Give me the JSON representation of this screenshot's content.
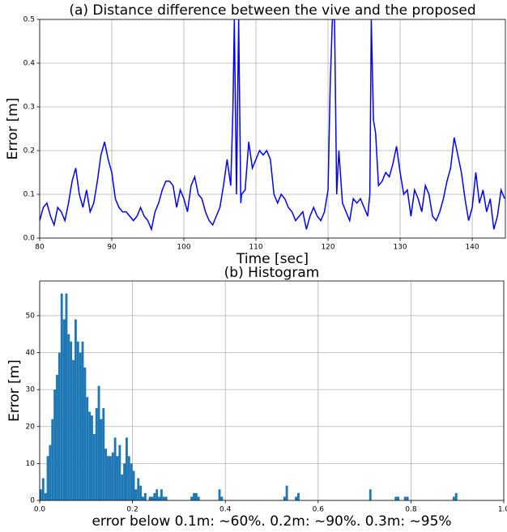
{
  "chart_data": [
    {
      "type": "line",
      "title": "(a) Distance difference between the vive and the proposed",
      "x_label": "Time [sec]",
      "y_label": "Error [m]",
      "x": [
        80,
        80.5,
        81,
        81.5,
        82,
        82.5,
        83,
        83.5,
        84,
        84.5,
        85,
        85.5,
        86,
        86.5,
        87,
        87.5,
        88,
        88.5,
        89,
        89.5,
        90,
        90.5,
        91,
        91.5,
        92,
        92.5,
        93,
        93.5,
        94,
        94.5,
        95,
        95.5,
        96,
        96.5,
        97,
        97.5,
        98,
        98.5,
        99,
        99.5,
        100,
        100.5,
        101,
        101.5,
        102,
        102.5,
        103,
        103.5,
        104,
        104.5,
        105,
        105.5,
        106,
        106.5,
        106.8,
        107,
        107.3,
        107.6,
        107.9,
        108,
        108.5,
        109,
        109.5,
        110,
        110.5,
        111,
        111.5,
        112,
        112.5,
        113,
        113.5,
        114,
        114.5,
        115,
        115.5,
        116,
        116.5,
        117,
        117.5,
        118,
        118.5,
        119,
        119.5,
        120,
        120.3,
        120.6,
        120.9,
        121.2,
        121.5,
        122,
        122.5,
        123,
        123.5,
        124,
        124.5,
        125,
        125.5,
        125.8,
        126,
        126.3,
        126.6,
        127,
        127.5,
        128,
        128.5,
        129,
        129.5,
        130,
        130.5,
        131,
        131.5,
        132,
        132.5,
        133,
        133.5,
        134,
        134.5,
        135,
        135.5,
        136,
        136.5,
        137,
        137.5,
        138,
        138.5,
        139,
        139.5,
        140,
        140.5,
        141,
        141.5,
        142,
        142.5,
        143,
        143.5,
        144,
        144.5
      ],
      "values": [
        0.04,
        0.07,
        0.08,
        0.05,
        0.03,
        0.07,
        0.06,
        0.04,
        0.08,
        0.13,
        0.16,
        0.1,
        0.07,
        0.11,
        0.06,
        0.08,
        0.13,
        0.19,
        0.22,
        0.18,
        0.15,
        0.09,
        0.07,
        0.06,
        0.06,
        0.05,
        0.04,
        0.05,
        0.07,
        0.05,
        0.04,
        0.02,
        0.06,
        0.08,
        0.11,
        0.13,
        0.13,
        0.12,
        0.07,
        0.11,
        0.09,
        0.06,
        0.12,
        0.14,
        0.1,
        0.09,
        0.06,
        0.04,
        0.03,
        0.05,
        0.07,
        0.12,
        0.18,
        0.12,
        0.29,
        0.5,
        0.1,
        0.5,
        0.08,
        0.1,
        0.11,
        0.22,
        0.16,
        0.18,
        0.2,
        0.19,
        0.2,
        0.18,
        0.1,
        0.08,
        0.1,
        0.09,
        0.07,
        0.06,
        0.04,
        0.05,
        0.06,
        0.02,
        0.05,
        0.07,
        0.05,
        0.04,
        0.06,
        0.11,
        0.35,
        0.5,
        0.5,
        0.1,
        0.2,
        0.08,
        0.06,
        0.04,
        0.09,
        0.08,
        0.09,
        0.07,
        0.05,
        0.1,
        0.5,
        0.27,
        0.24,
        0.12,
        0.13,
        0.15,
        0.14,
        0.17,
        0.21,
        0.15,
        0.1,
        0.11,
        0.05,
        0.11,
        0.09,
        0.06,
        0.12,
        0.1,
        0.05,
        0.04,
        0.06,
        0.09,
        0.13,
        0.16,
        0.23,
        0.19,
        0.15,
        0.09,
        0.04,
        0.07,
        0.15,
        0.08,
        0.11,
        0.06,
        0.09,
        0.02,
        0.05,
        0.11,
        0.09
      ],
      "color": "#0000ff",
      "xlim": [
        80,
        144.6
      ],
      "ylim": [
        0,
        0.5
      ],
      "xticks": [
        80,
        90,
        100,
        110,
        120,
        130,
        140
      ],
      "yticks": [
        {
          "value": 0,
          "label": "0.0"
        },
        0.1,
        0.2,
        0.3,
        0.4,
        0.5
      ],
      "grid": true
    },
    {
      "type": "histogram",
      "title": "(b) Histogram",
      "x_label": "error below 0.1m: ~60%. 0.2m: ~90%. 0.3m: ~95%",
      "y_label": "Error [m]",
      "bins": [
        0,
        0.005,
        0.01,
        0.015,
        0.02,
        0.025,
        0.03,
        0.035,
        0.04,
        0.045,
        0.05,
        0.055,
        0.06,
        0.065,
        0.07,
        0.075,
        0.08,
        0.085,
        0.09,
        0.095,
        0.1,
        0.105,
        0.11,
        0.115,
        0.12,
        0.125,
        0.13,
        0.135,
        0.14,
        0.145,
        0.15,
        0.155,
        0.16,
        0.165,
        0.17,
        0.175,
        0.18,
        0.185,
        0.19,
        0.195,
        0.2,
        0.205,
        0.21,
        0.215,
        0.22,
        0.225,
        0.23,
        0.235,
        0.24,
        0.245,
        0.25,
        0.255,
        0.26,
        0.265,
        0.27,
        0.275,
        0.28,
        0.285,
        0.29,
        0.295,
        0.3,
        0.305,
        0.31,
        0.315,
        0.32,
        0.325,
        0.33,
        0.335,
        0.34,
        0.345,
        0.35,
        0.355,
        0.36,
        0.365,
        0.37,
        0.375,
        0.38,
        0.385,
        0.39,
        0.395,
        0.4,
        0.405,
        0.41,
        0.415,
        0.42,
        0.425,
        0.43,
        0.435,
        0.44,
        0.445,
        0.45,
        0.455,
        0.46,
        0.465,
        0.47,
        0.475,
        0.48,
        0.485,
        0.49,
        0.495,
        0.5,
        0.505,
        0.51,
        0.515,
        0.52,
        0.525,
        0.53,
        0.535,
        0.54,
        0.545,
        0.55,
        0.555,
        0.56,
        0.565,
        0.57,
        0.575,
        0.58,
        0.585,
        0.59,
        0.595,
        0.6,
        0.605,
        0.61,
        0.615,
        0.62,
        0.625,
        0.63,
        0.635,
        0.64,
        0.645,
        0.65,
        0.655,
        0.66,
        0.665,
        0.67,
        0.675,
        0.68,
        0.685,
        0.69,
        0.695,
        0.7,
        0.705,
        0.71,
        0.715,
        0.72,
        0.725,
        0.73,
        0.735,
        0.74,
        0.745,
        0.75,
        0.755,
        0.76,
        0.765,
        0.77,
        0.775,
        0.78,
        0.785,
        0.79,
        0.795,
        0.8,
        0.805,
        0.81,
        0.815,
        0.82,
        0.825,
        0.83,
        0.835,
        0.84,
        0.845,
        0.85,
        0.855,
        0.86,
        0.865,
        0.87,
        0.875,
        0.88,
        0.885,
        0.89,
        0.895,
        0.9
      ],
      "counts": [
        3,
        6,
        2,
        12,
        15,
        22,
        30,
        34,
        40,
        56,
        49,
        56,
        45,
        43,
        38,
        49,
        43,
        40,
        43,
        36,
        28,
        24,
        23,
        18,
        25,
        31,
        22,
        25,
        14,
        12,
        12,
        13,
        17,
        12,
        15,
        7,
        10,
        17,
        12,
        10,
        8,
        3,
        6,
        4,
        1,
        2,
        0,
        1,
        1,
        2,
        3,
        1,
        3,
        1,
        1,
        0,
        0,
        0,
        0,
        0,
        0,
        0,
        0,
        0,
        0,
        1,
        2,
        2,
        1,
        0,
        0,
        0,
        0,
        0,
        0,
        0,
        0,
        3,
        1,
        0,
        0,
        0,
        0,
        0,
        0,
        0,
        0,
        0,
        0,
        0,
        0,
        0,
        0,
        0,
        0,
        0,
        0,
        0,
        0,
        0,
        0,
        0,
        0,
        0,
        0,
        1,
        4,
        0,
        0,
        0,
        1,
        2,
        0,
        0,
        0,
        0,
        0,
        0,
        0,
        0,
        0,
        0,
        0,
        0,
        0,
        0,
        0,
        0,
        0,
        0,
        0,
        0,
        0,
        0,
        0,
        0,
        0,
        0,
        0,
        0,
        0,
        0,
        3,
        0,
        0,
        0,
        0,
        0,
        0,
        0,
        0,
        0,
        0,
        1,
        1,
        0,
        0,
        1,
        1,
        0,
        0,
        0,
        0,
        0,
        0,
        0,
        0,
        0,
        0,
        0,
        0,
        0,
        0,
        0,
        0,
        0,
        0,
        0,
        1,
        2
      ],
      "color": "#1f77b4",
      "xlim": [
        0,
        1
      ],
      "ylim": [
        0,
        59.4
      ],
      "xticks": [
        {
          "value": 0,
          "label": "0.0"
        },
        0.2,
        0.4,
        0.6,
        0.8,
        {
          "value": 1,
          "label": "1.0"
        }
      ],
      "yticks": [
        0,
        10,
        20,
        30,
        40,
        50
      ],
      "grid": true
    }
  ]
}
